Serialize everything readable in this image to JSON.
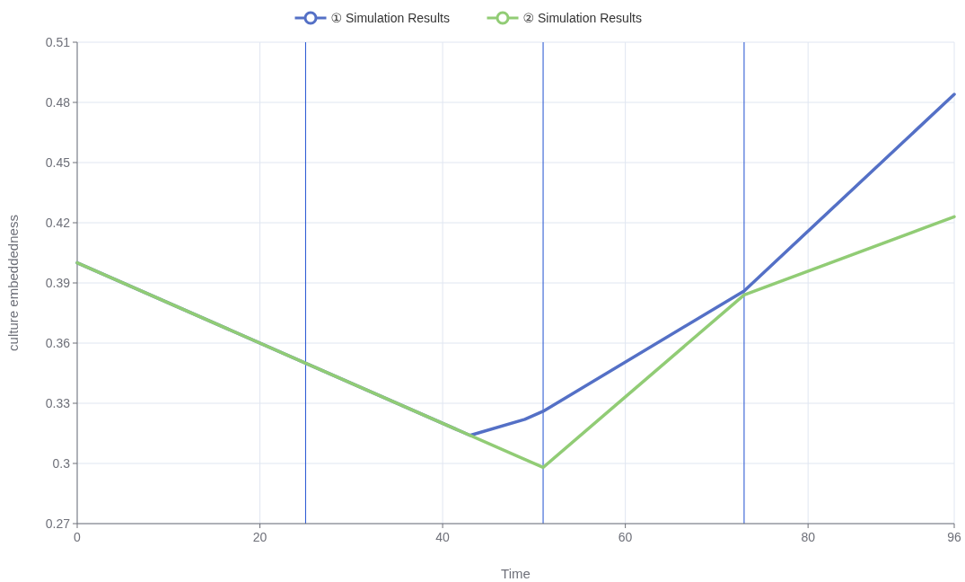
{
  "chart_data": {
    "type": "line",
    "xlabel": "Time",
    "ylabel": "culture embeddedness",
    "xlim": [
      0,
      96
    ],
    "xticks": [
      0,
      20,
      40,
      60,
      80,
      96
    ],
    "ylim": [
      0.27,
      0.51
    ],
    "yticks": [
      0.27,
      0.3,
      0.33,
      0.36,
      0.39,
      0.42,
      0.45,
      0.48,
      0.51
    ],
    "grid": true,
    "legend": "top",
    "marker": "none",
    "line_style": "solid",
    "ref_lines": [
      {
        "axis": "x",
        "value": 25,
        "color": "#1f4fd1"
      },
      {
        "axis": "x",
        "value": 51,
        "color": "#1f4fd1"
      },
      {
        "axis": "x",
        "value": 73,
        "color": "#1f4fd1"
      }
    ],
    "series": [
      {
        "name": "① Simulation Results",
        "color": "#5470c6",
        "x": [
          0,
          25,
          43,
          49,
          51,
          73,
          96
        ],
        "values": [
          0.4,
          0.35,
          0.314,
          0.322,
          0.326,
          0.386,
          0.484
        ]
      },
      {
        "name": "② Simulation Results",
        "color": "#91cc75",
        "x": [
          0,
          25,
          51,
          73,
          96
        ],
        "values": [
          0.4,
          0.35,
          0.298,
          0.384,
          0.423
        ]
      }
    ]
  }
}
